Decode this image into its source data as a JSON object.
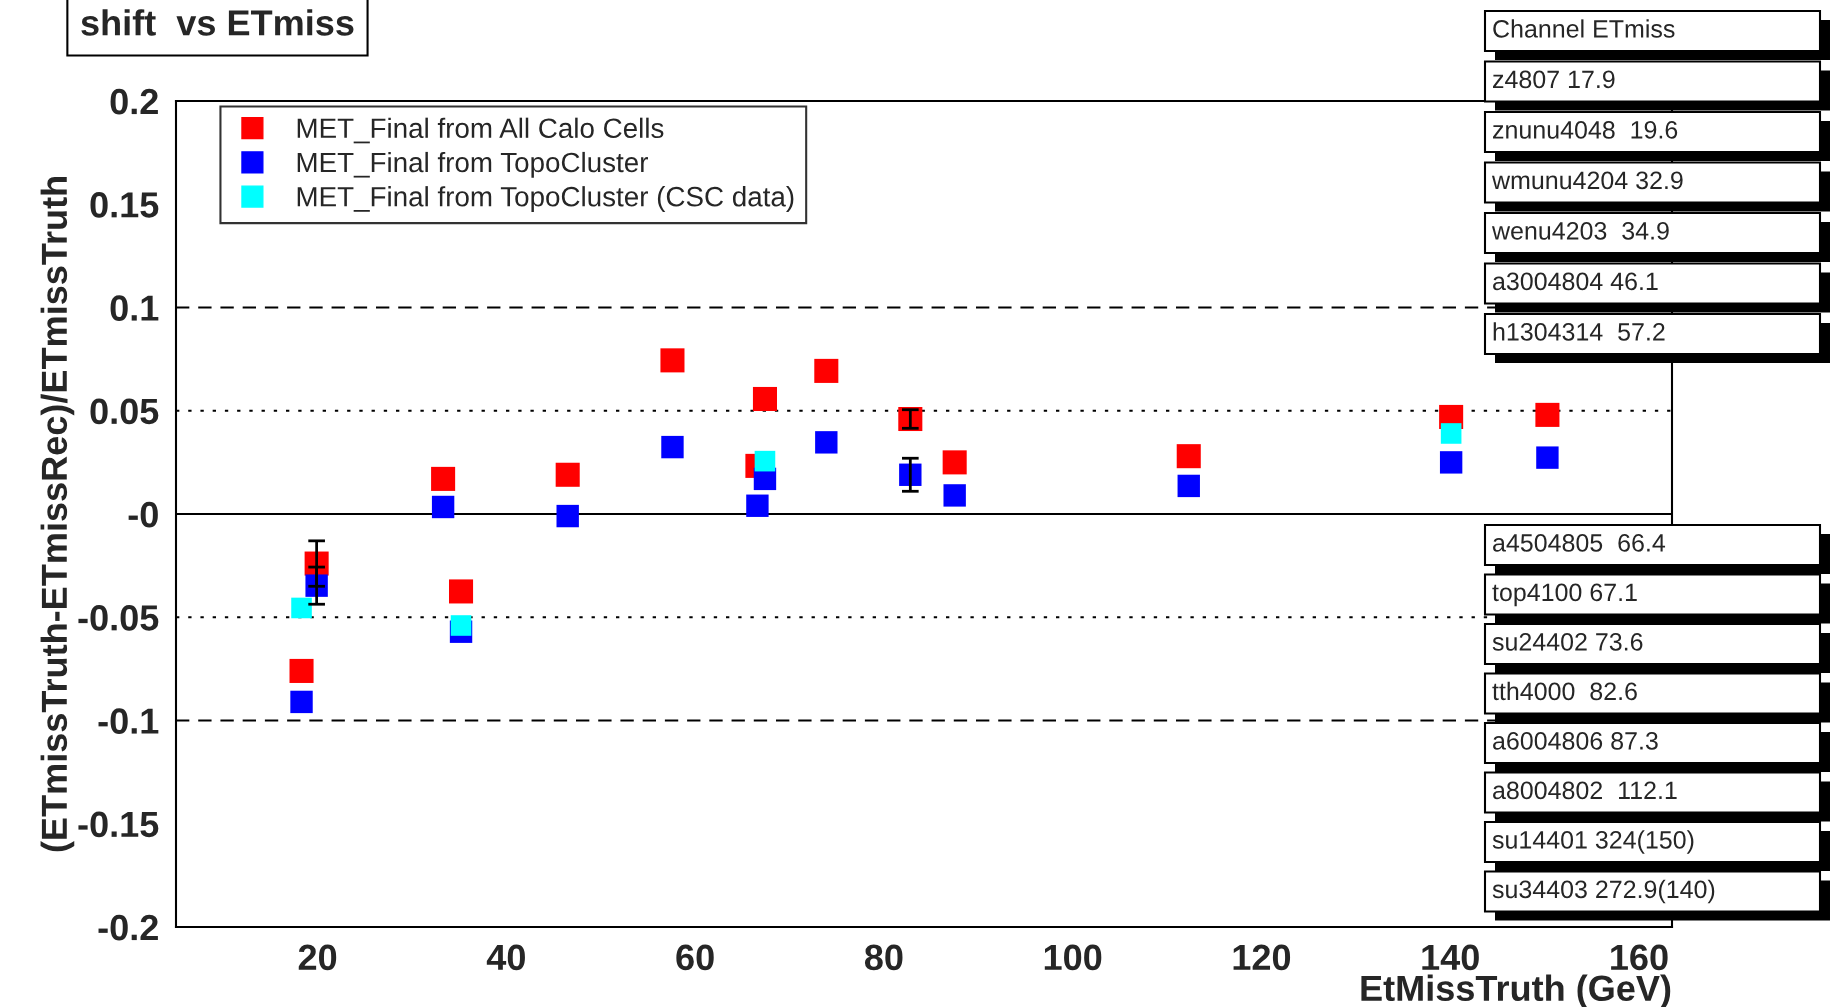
{
  "chart_data": {
    "type": "scatter",
    "title": "shift  vs ETmiss",
    "xlabel": "EtMissTruth (GeV)",
    "ylabel": "(ETmissTruth-ETmissRec)/ETmissTruth",
    "xlim": [
      5,
      163.5
    ],
    "xticks": [
      20,
      40,
      60,
      80,
      100,
      120,
      140,
      160
    ],
    "ylim": [
      -0.2,
      0.2
    ],
    "yticks": [
      -0.2,
      -0.15,
      -0.1,
      -0.05,
      {
        "value": 0,
        "label": "-0"
      },
      0.05,
      0.1,
      0.15,
      0.2
    ],
    "marker": "square",
    "legend": "top left",
    "grid": false,
    "series": [
      {
        "name": "MET_Final from All Calo Cells",
        "color": "#ff0000",
        "x": [
          18.3,
          19.9,
          33.3,
          35.2,
          46.5,
          57.6,
          67.4,
          66.6,
          73.9,
          82.8,
          87.5,
          112.3,
          140.1,
          150.3
        ],
        "values": [
          -0.076,
          -0.024,
          0.017,
          -0.0375,
          0.019,
          0.0744,
          0.0557,
          0.0233,
          0.0693,
          0.046,
          0.025,
          0.028,
          0.047,
          0.048
        ],
        "errors": [
          null,
          0.011,
          null,
          null,
          null,
          null,
          null,
          null,
          null,
          0.0045,
          null,
          null,
          null,
          null
        ]
      },
      {
        "name": "MET_Final from TopoCluster",
        "color": "#0000ff",
        "x": [
          18.3,
          19.9,
          33.3,
          35.2,
          46.5,
          57.6,
          66.6,
          67.4,
          73.9,
          82.8,
          87.5,
          112.3,
          140.1,
          150.3
        ],
        "values": [
          -0.091,
          -0.0347,
          0.0034,
          -0.057,
          -0.001,
          0.0324,
          0.004,
          0.017,
          0.0347,
          0.019,
          0.009,
          0.0136,
          0.025,
          0.0273
        ],
        "errors": [
          null,
          0.009,
          null,
          null,
          null,
          null,
          null,
          null,
          null,
          0.008,
          null,
          null,
          null,
          null
        ]
      },
      {
        "name": "MET_Final from TopoCluster (CSC data)",
        "color": "#00ffff",
        "x": [
          18.3,
          35.2,
          67.4,
          140.1
        ],
        "values": [
          -0.0455,
          -0.054,
          0.0256,
          0.039
        ]
      }
    ],
    "ref_lines": [
      {
        "axis": "y",
        "value": 0.1,
        "line_style": "dashed"
      },
      {
        "axis": "y",
        "value": -0.1,
        "line_style": "dashed"
      },
      {
        "axis": "y",
        "value": 0.05,
        "line_style": "dotted"
      },
      {
        "axis": "y",
        "value": -0.05,
        "line_style": "dotted"
      },
      {
        "axis": "y",
        "value": 0,
        "line_style": "solid"
      }
    ],
    "annotations": [
      "Channel ETmiss",
      "z4807 17.9",
      "znunu4048  19.6",
      "wmunu4204 32.9",
      "wenu4203  34.9",
      "a3004804 46.1",
      "h1304314  57.2",
      "a4504805  66.4",
      "top4100 67.1",
      "su24402 73.6",
      "tth4000  82.6",
      "a6004806 87.3",
      "a8004802  112.1",
      "su14401 324(150)",
      "su34403 272.9(140)"
    ]
  }
}
